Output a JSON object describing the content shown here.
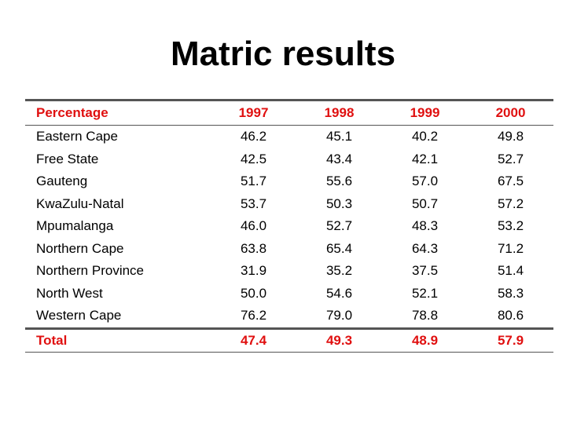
{
  "title": "Matric results",
  "colors": {
    "accent": "#e01010"
  },
  "table": {
    "columns": [
      "Percentage",
      "1997",
      "1998",
      "1999",
      "2000"
    ],
    "rows": [
      [
        "Eastern Cape",
        "46.2",
        "45.1",
        "40.2",
        "49.8"
      ],
      [
        "Free State",
        "42.5",
        "43.4",
        "42.1",
        "52.7"
      ],
      [
        "Gauteng",
        "51.7",
        "55.6",
        "57.0",
        "67.5"
      ],
      [
        "KwaZulu-Natal",
        "53.7",
        "50.3",
        "50.7",
        "57.2"
      ],
      [
        "Mpumalanga",
        "46.0",
        "52.7",
        "48.3",
        "53.2"
      ],
      [
        "Northern Cape",
        "63.8",
        "65.4",
        "64.3",
        "71.2"
      ],
      [
        "Northern Province",
        "31.9",
        "35.2",
        "37.5",
        "51.4"
      ],
      [
        "North West",
        "50.0",
        "54.6",
        "52.1",
        "58.3"
      ],
      [
        "Western Cape",
        "76.2",
        "79.0",
        "78.8",
        "80.6"
      ]
    ],
    "total": [
      "Total",
      "47.4",
      "49.3",
      "48.9",
      "57.9"
    ]
  }
}
